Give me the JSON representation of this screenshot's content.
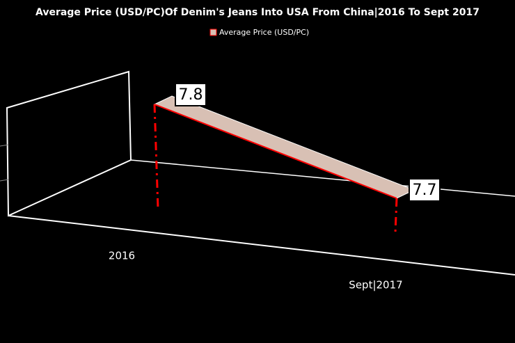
{
  "chart_data": {
    "type": "line",
    "title": "Average Price (USD/PC)Of Denim's Jeans Into USA From China|2016 To Sept 2017",
    "categories": [
      "2016",
      "Sept|2017"
    ],
    "series": [
      {
        "name": "Average Price (USD/PC)",
        "color": "#d8c0b4",
        "line_color": "#ff0000",
        "values": [
          7.8,
          7.7
        ]
      }
    ],
    "legend": "top"
  }
}
